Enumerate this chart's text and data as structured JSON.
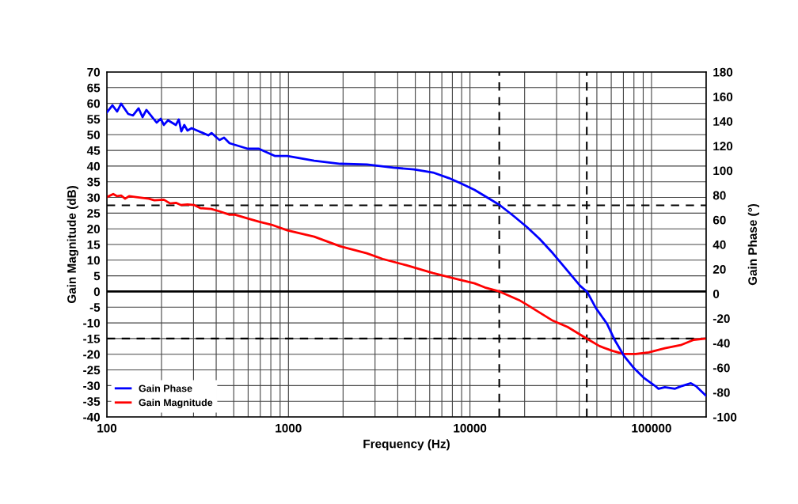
{
  "chart_data": {
    "type": "line",
    "xlabel": "Frequency (Hz)",
    "ylabel": "Gain Magnitude (dB)",
    "y2label": "Gain Phase (°)",
    "log": "x",
    "xlim": [
      100,
      200000
    ],
    "xticks": [
      100,
      1000,
      10000,
      100000
    ],
    "ylim": [
      -40,
      70
    ],
    "yticks": [
      -40,
      -35,
      -30,
      -25,
      -20,
      -15,
      -10,
      -5,
      0,
      5,
      10,
      15,
      20,
      25,
      30,
      35,
      40,
      45,
      50,
      55,
      60,
      65,
      70
    ],
    "y2lim": [
      -100,
      180
    ],
    "y2ticks": [
      -100,
      -80,
      -60,
      -40,
      -20,
      0,
      20,
      40,
      60,
      80,
      100,
      120,
      140,
      160,
      180
    ],
    "grid": true,
    "legend": "bottom left",
    "marker": "none",
    "line_style": "solid",
    "ref_lines": [
      {
        "axis": "y",
        "value": 0,
        "color": "#000000",
        "line_style": "solid"
      },
      {
        "axis": "y",
        "value": 27.5,
        "color": "#000000",
        "line_style": "dashed"
      },
      {
        "axis": "y",
        "value": -15,
        "color": "#000000",
        "line_style": "dashed"
      },
      {
        "axis": "x",
        "value": 14500,
        "color": "#000000",
        "line_style": "dashed"
      },
      {
        "axis": "x",
        "value": 44000,
        "color": "#000000",
        "line_style": "dashed"
      }
    ],
    "series": [
      {
        "name": "Gain Phase",
        "color": "#0000ff",
        "axis": "y2",
        "x": [
          100,
          107.3,
          113.9,
          119.8,
          131.1,
          139.3,
          149.5,
          157.2,
          165.1,
          188,
          198,
          206,
          217,
          240,
          249,
          257,
          267,
          278,
          293,
          362,
          377,
          417,
          442,
          474,
          597,
          687,
          768,
          840,
          986,
          1387,
          1934,
          2703,
          3780,
          4919,
          6256,
          7649,
          8962,
          10600,
          12530,
          14540,
          17400,
          20600,
          24200,
          28600,
          32190,
          40400,
          44200,
          49400,
          56900,
          62900,
          70300,
          79400,
          90500,
          104000,
          109300,
          118400,
          134800,
          144600,
          164700,
          176700,
          200000
        ],
        "values": [
          147.2,
          153,
          147.9,
          154.3,
          146,
          144.7,
          150.5,
          143.4,
          149.2,
          138.9,
          142.1,
          137,
          140.8,
          137,
          141.5,
          131.8,
          137,
          132.5,
          134.4,
          128.6,
          130.5,
          124.8,
          126.7,
          122.2,
          117.7,
          117.7,
          114.5,
          111.9,
          111.9,
          108,
          105.5,
          104.9,
          102.3,
          101,
          98.4,
          93.9,
          89.4,
          84.3,
          77.9,
          72.1,
          63.1,
          54.1,
          44.5,
          32.9,
          23.8,
          6.5,
          1.5,
          -11.6,
          -24.4,
          -37.9,
          -50.1,
          -59.8,
          -68.1,
          -74.5,
          -77.1,
          -75.8,
          -77.1,
          -75.2,
          -72.6,
          -75.2,
          -82.9
        ]
      },
      {
        "name": "Gain Magnitude",
        "color": "#ff0000",
        "x": [
          100,
          108.4,
          113.9,
          119.8,
          126,
          132.5,
          145,
          170.2,
          182.6,
          206,
          223,
          240,
          255,
          278,
          302,
          327,
          376,
          416,
          474,
          508,
          597,
          687,
          807,
          986,
          1387,
          1934,
          2703,
          3300,
          4450,
          6256,
          8700,
          10600,
          12080,
          14540,
          18600,
          20600,
          28600,
          34500,
          44200,
          51700,
          60800,
          70300,
          81700,
          96600,
          118400,
          144600,
          170800,
          200000
        ],
        "values": [
          30.1,
          31.1,
          30.4,
          30.6,
          29.6,
          30.4,
          30.1,
          29.6,
          29.1,
          29.3,
          28.1,
          28.3,
          27.6,
          27.8,
          27.6,
          26.6,
          26.3,
          25.6,
          24.5,
          24.5,
          23.3,
          22.3,
          21.3,
          19.5,
          17.5,
          14.4,
          12.2,
          10.4,
          8.4,
          5.9,
          3.8,
          2.6,
          1.3,
          0,
          -2.7,
          -4.2,
          -9.3,
          -11.3,
          -15.1,
          -17.4,
          -18.9,
          -19.9,
          -19.9,
          -19.4,
          -18.1,
          -17.1,
          -15.4,
          -15
        ]
      }
    ]
  }
}
